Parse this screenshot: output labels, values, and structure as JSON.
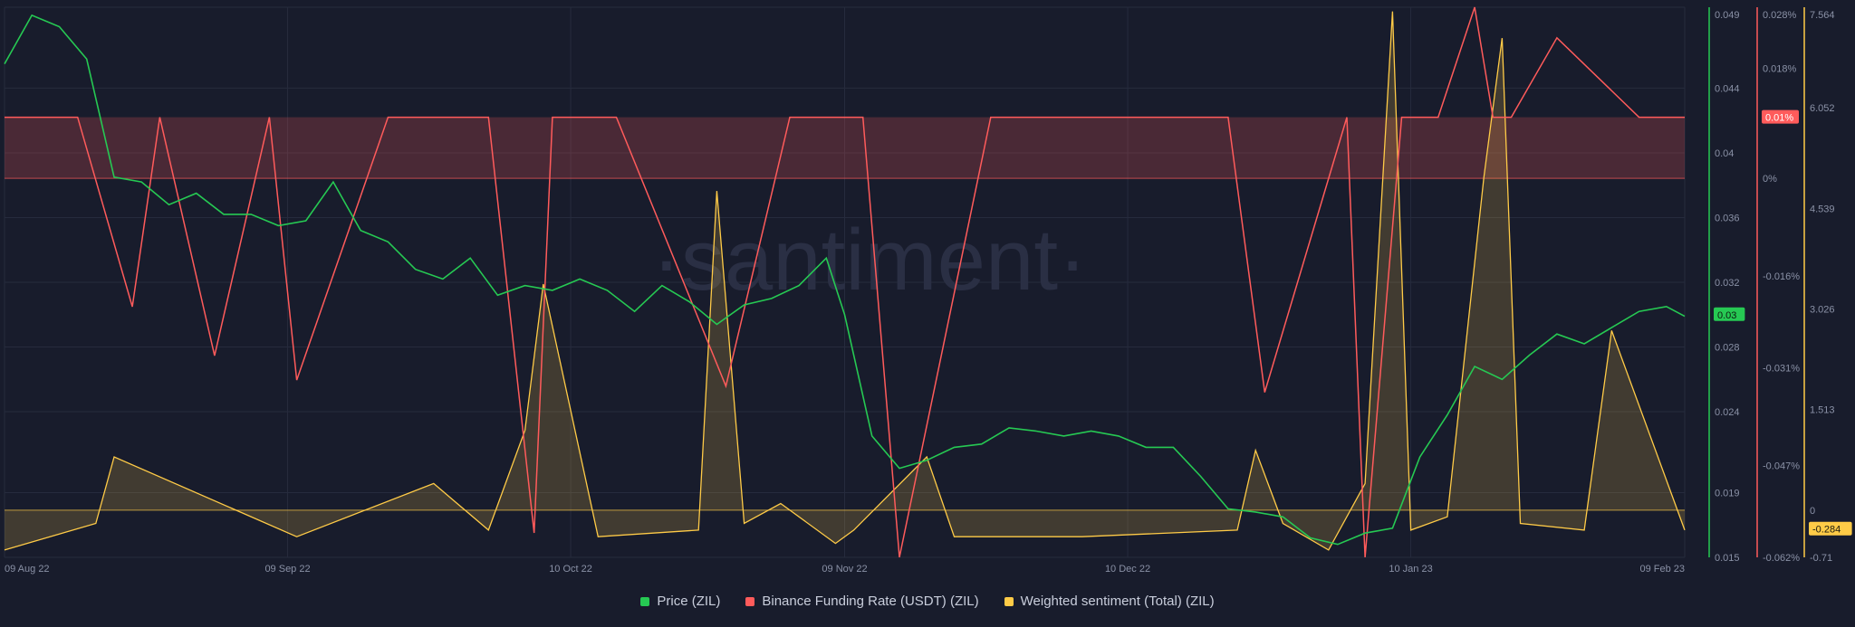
{
  "watermark": "·santiment·",
  "legend": [
    {
      "label": "Price (ZIL)",
      "color": "#26c953"
    },
    {
      "label": "Binance Funding Rate (USDT) (ZIL)",
      "color": "#ff5b5b"
    },
    {
      "label": "Weighted sentiment (Total) (ZIL)",
      "color": "#ffcb47"
    }
  ],
  "colors": {
    "background": "#181c2c",
    "grid": "#262b3d",
    "price": "#26c953",
    "funding": "#ff5b5b",
    "sentiment": "#ffcb47"
  },
  "chart_data": {
    "type": "line",
    "x_ticks": [
      "09 Aug 22",
      "09 Sep 22",
      "10 Oct 22",
      "09 Nov 22",
      "10 Dec 22",
      "10 Jan 23",
      "09 Feb 23"
    ],
    "x_range": [
      "2022-08-09",
      "2023-02-09"
    ],
    "axes": {
      "price": {
        "ticks": [
          "0.049",
          "0.044",
          "0.04",
          "0.036",
          "0.032",
          "0.028",
          "0.024",
          "0.019",
          "0.015"
        ],
        "range": [
          0.015,
          0.049
        ]
      },
      "funding": {
        "ticks": [
          "0.028%",
          "0.018%",
          "0%",
          "-0.016%",
          "-0.031%",
          "-0.047%",
          "-0.062%"
        ],
        "range": [
          -0.062,
          0.028
        ]
      },
      "sentiment": {
        "ticks": [
          "7.564",
          "6.052",
          "4.539",
          "3.026",
          "1.513",
          "0",
          "-0.71"
        ],
        "range": [
          -0.71,
          7.564
        ]
      }
    },
    "current_values": {
      "price": "0.03",
      "funding": "0.01%",
      "sentiment": "-0.284"
    },
    "series": [
      {
        "name": "Price (ZIL)",
        "axis": "price",
        "x": [
          "2022-08-09",
          "2022-08-12",
          "2022-08-15",
          "2022-08-18",
          "2022-08-21",
          "2022-08-24",
          "2022-08-27",
          "2022-08-30",
          "2022-09-02",
          "2022-09-05",
          "2022-09-08",
          "2022-09-11",
          "2022-09-14",
          "2022-09-17",
          "2022-09-20",
          "2022-09-23",
          "2022-09-26",
          "2022-09-29",
          "2022-10-02",
          "2022-10-05",
          "2022-10-08",
          "2022-10-11",
          "2022-10-14",
          "2022-10-17",
          "2022-10-20",
          "2022-10-23",
          "2022-10-26",
          "2022-10-29",
          "2022-11-01",
          "2022-11-04",
          "2022-11-07",
          "2022-11-09",
          "2022-11-12",
          "2022-11-15",
          "2022-11-18",
          "2022-11-21",
          "2022-11-24",
          "2022-11-27",
          "2022-11-30",
          "2022-12-03",
          "2022-12-06",
          "2022-12-09",
          "2022-12-12",
          "2022-12-15",
          "2022-12-18",
          "2022-12-21",
          "2022-12-24",
          "2022-12-27",
          "2022-12-30",
          "2023-01-02",
          "2023-01-05",
          "2023-01-08",
          "2023-01-11",
          "2023-01-14",
          "2023-01-17",
          "2023-01-20",
          "2023-01-23",
          "2023-01-26",
          "2023-01-29",
          "2023-02-01",
          "2023-02-04",
          "2023-02-07",
          "2023-02-09"
        ],
        "values": [
          0.0455,
          0.0485,
          0.0478,
          0.0458,
          0.0385,
          0.0382,
          0.0368,
          0.0375,
          0.0362,
          0.0362,
          0.0355,
          0.0358,
          0.0382,
          0.0352,
          0.0345,
          0.0328,
          0.0322,
          0.0335,
          0.0312,
          0.0318,
          0.0315,
          0.0322,
          0.0315,
          0.0302,
          0.0318,
          0.0308,
          0.0294,
          0.0306,
          0.031,
          0.0318,
          0.0335,
          0.03,
          0.0225,
          0.0205,
          0.021,
          0.0218,
          0.022,
          0.023,
          0.0228,
          0.0225,
          0.0228,
          0.0225,
          0.0218,
          0.0218,
          0.02,
          0.018,
          0.0178,
          0.0175,
          0.0162,
          0.0158,
          0.0165,
          0.0168,
          0.0212,
          0.0238,
          0.0268,
          0.026,
          0.0275,
          0.0288,
          0.0282,
          0.0292,
          0.0302,
          0.0305,
          0.0299
        ]
      },
      {
        "name": "Binance Funding Rate (USDT) (ZIL)",
        "axis": "funding",
        "x": [
          "2022-08-09",
          "2022-08-17",
          "2022-08-23",
          "2022-08-26",
          "2022-09-01",
          "2022-09-07",
          "2022-09-10",
          "2022-09-20",
          "2022-10-01",
          "2022-10-06",
          "2022-10-08",
          "2022-10-15",
          "2022-10-27",
          "2022-11-03",
          "2022-11-11",
          "2022-11-15",
          "2022-11-25",
          "2022-12-08",
          "2022-12-21",
          "2022-12-25",
          "2023-01-03",
          "2023-01-05",
          "2023-01-09",
          "2023-01-13",
          "2023-01-17",
          "2023-01-19",
          "2023-01-21",
          "2023-01-26",
          "2023-02-04",
          "2023-02-09"
        ],
        "values": [
          0.01,
          0.01,
          -0.021,
          0.01,
          -0.029,
          0.01,
          -0.033,
          0.01,
          0.01,
          -0.058,
          0.01,
          0.01,
          -0.034,
          0.01,
          0.01,
          -0.062,
          0.01,
          0.01,
          0.01,
          -0.035,
          0.01,
          -0.062,
          0.01,
          0.01,
          0.028,
          0.01,
          0.01,
          0.023,
          0.01,
          0.01
        ]
      },
      {
        "name": "Weighted sentiment (Total) (ZIL)",
        "axis": "sentiment",
        "x": [
          "2022-08-09",
          "2022-08-19",
          "2022-08-21",
          "2022-09-10",
          "2022-09-25",
          "2022-10-01",
          "2022-10-05",
          "2022-10-07",
          "2022-10-13",
          "2022-10-24",
          "2022-10-26",
          "2022-10-29",
          "2022-11-02",
          "2022-11-08",
          "2022-11-10",
          "2022-11-18",
          "2022-11-21",
          "2022-12-05",
          "2022-12-22",
          "2022-12-24",
          "2022-12-27",
          "2023-01-01",
          "2023-01-05",
          "2023-01-08",
          "2023-01-10",
          "2023-01-14",
          "2023-01-18",
          "2023-01-20",
          "2023-01-22",
          "2023-01-29",
          "2023-02-01",
          "2023-02-09"
        ],
        "values": [
          -0.6,
          -0.2,
          0.8,
          -0.4,
          0.4,
          -0.3,
          1.2,
          3.4,
          -0.4,
          -0.3,
          4.8,
          -0.2,
          0.1,
          -0.5,
          -0.3,
          0.8,
          -0.4,
          -0.4,
          -0.3,
          0.9,
          -0.2,
          -0.6,
          0.4,
          7.5,
          -0.3,
          -0.1,
          5.0,
          7.1,
          -0.2,
          -0.3,
          2.7,
          -0.3
        ]
      }
    ]
  }
}
